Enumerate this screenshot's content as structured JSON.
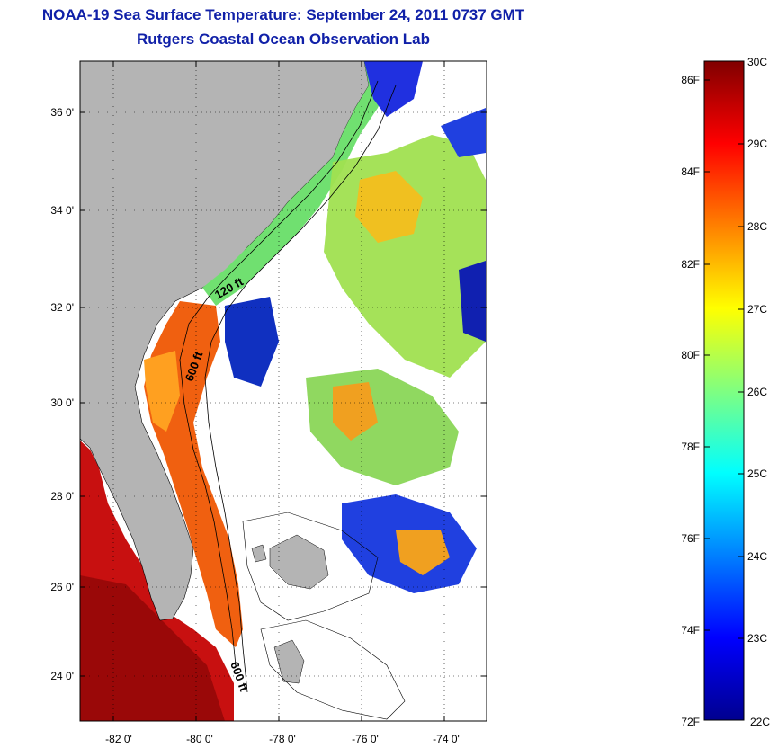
{
  "title": {
    "line1": "NOAA-19 Sea Surface Temperature:  September 24, 2011 0737 GMT",
    "line2": "Rutgers Coastal Ocean Observation Lab"
  },
  "map": {
    "lat_ticks": [
      "24 0'",
      "26 0'",
      "28 0'",
      "30 0'",
      "32 0'",
      "34 0'",
      "36 0'"
    ],
    "lon_ticks": [
      "-82 0'",
      "-80 0'",
      "-78 0'",
      "-76 0'",
      "-74 0'"
    ],
    "contour_labels": [
      "120 ft",
      "600 ft",
      "600 ft"
    ],
    "colors": {
      "land": "#b4b4b4",
      "no_data": "#ffffff"
    }
  },
  "colorbar": {
    "fahrenheit": [
      "86F",
      "84F",
      "82F",
      "80F",
      "78F",
      "76F",
      "74F",
      "72F"
    ],
    "celsius": [
      "30C",
      "29C",
      "28C",
      "27C",
      "26C",
      "25C",
      "24C",
      "23C",
      "22C"
    ],
    "range_c": [
      22,
      30
    ],
    "colors": [
      "#00008f",
      "#0000ff",
      "#0080ff",
      "#00ffff",
      "#80ff80",
      "#ffff00",
      "#ff8000",
      "#ff0000",
      "#800000"
    ]
  }
}
